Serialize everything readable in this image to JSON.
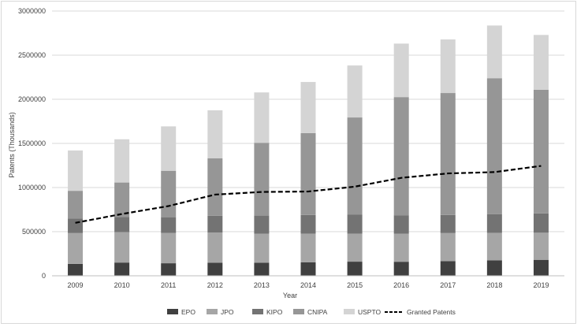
{
  "chart_data": {
    "type": "bar",
    "stacked": true,
    "title": "",
    "xlabel": "Year",
    "ylabel": "Patents (Thousands)",
    "ylim": [
      0,
      3000000
    ],
    "yticks": [
      0,
      500000,
      1000000,
      1500000,
      2000000,
      2500000,
      3000000
    ],
    "grid": true,
    "legend_position": "bottom",
    "categories": [
      "2009",
      "2010",
      "2011",
      "2012",
      "2013",
      "2014",
      "2015",
      "2016",
      "2017",
      "2018",
      "2019"
    ],
    "series": [
      {
        "name": "EPO",
        "color": "#404040",
        "values": [
          135000,
          150000,
          142000,
          148000,
          148000,
          152000,
          160000,
          159000,
          166000,
          174000,
          181000
        ]
      },
      {
        "name": "JPO",
        "color": "#a6a6a6",
        "values": [
          349000,
          345000,
          343000,
          343000,
          329000,
          326000,
          318000,
          318000,
          318000,
          313000,
          307000
        ]
      },
      {
        "name": "KIPO",
        "color": "#737373",
        "values": [
          164000,
          171000,
          179000,
          189000,
          205000,
          211000,
          214000,
          209000,
          205000,
          210000,
          219000
        ]
      },
      {
        "name": "CNIPA",
        "color": "#969696",
        "values": [
          315000,
          391000,
          526000,
          652000,
          825000,
          928000,
          1102000,
          1339000,
          1382000,
          1542000,
          1401000
        ]
      },
      {
        "name": "USPTO",
        "color": "#d4d4d4",
        "values": [
          457000,
          490000,
          503000,
          543000,
          571000,
          579000,
          589000,
          606000,
          607000,
          597000,
          621000
        ]
      }
    ],
    "line_series": {
      "name": "Granted Patents",
      "color": "#000000",
      "style": "dashed",
      "values": [
        600000,
        700000,
        790000,
        920000,
        950000,
        955000,
        1010000,
        1110000,
        1160000,
        1175000,
        1245000
      ]
    }
  }
}
